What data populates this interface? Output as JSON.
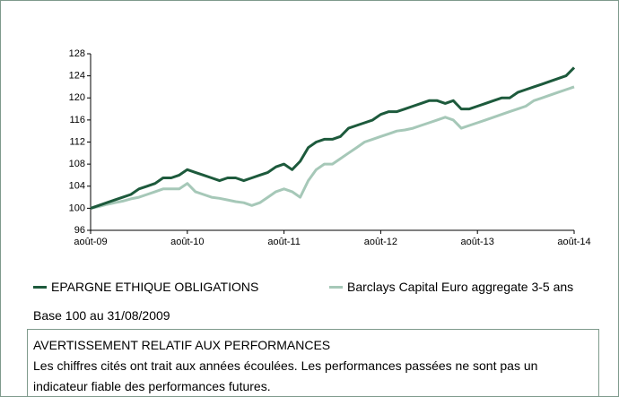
{
  "chart_data": {
    "type": "line",
    "x": [
      "2009-08",
      "2009-09",
      "2009-10",
      "2009-11",
      "2009-12",
      "2010-01",
      "2010-02",
      "2010-03",
      "2010-04",
      "2010-05",
      "2010-06",
      "2010-07",
      "2010-08",
      "2010-09",
      "2010-10",
      "2010-11",
      "2010-12",
      "2011-01",
      "2011-02",
      "2011-03",
      "2011-04",
      "2011-05",
      "2011-06",
      "2011-07",
      "2011-08",
      "2011-09",
      "2011-10",
      "2011-11",
      "2011-12",
      "2012-01",
      "2012-02",
      "2012-03",
      "2012-04",
      "2012-05",
      "2012-06",
      "2012-07",
      "2012-08",
      "2012-09",
      "2012-10",
      "2012-11",
      "2012-12",
      "2013-01",
      "2013-02",
      "2013-03",
      "2013-04",
      "2013-05",
      "2013-06",
      "2013-07",
      "2013-08",
      "2013-09",
      "2013-10",
      "2013-11",
      "2013-12",
      "2014-01",
      "2014-02",
      "2014-03",
      "2014-04",
      "2014-05",
      "2014-06",
      "2014-07",
      "2014-08"
    ],
    "series": [
      {
        "name": "EPARGNE ETHIQUE OBLIGATIONS",
        "color": "#1d5a3c",
        "values": [
          100,
          100.5,
          101,
          101.5,
          102,
          102.5,
          103.5,
          104,
          104.5,
          105.5,
          105.5,
          106,
          107,
          106.5,
          106,
          105.5,
          105,
          105.5,
          105.5,
          105,
          105.5,
          106,
          106.5,
          107.5,
          108,
          107,
          108.5,
          111,
          112,
          112.5,
          112.5,
          113,
          114.5,
          115,
          115.5,
          116,
          117,
          117.5,
          117.5,
          118,
          118.5,
          119,
          119.5,
          119.5,
          119,
          119.5,
          118,
          118,
          118.5,
          119,
          119.5,
          120,
          120,
          121,
          121.5,
          122,
          122.5,
          123,
          123.5,
          124,
          125.5
        ]
      },
      {
        "name": "Barclays Capital Euro aggregate 3-5 ans",
        "color": "#a6c8b8",
        "values": [
          100,
          100.3,
          100.7,
          101,
          101.3,
          101.7,
          102,
          102.5,
          103,
          103.5,
          103.5,
          103.5,
          104.5,
          103,
          102.5,
          102,
          101.8,
          101.5,
          101.2,
          101,
          100.5,
          101,
          102,
          103,
          103.5,
          103,
          102,
          105,
          107,
          108,
          108,
          109,
          110,
          111,
          112,
          112.5,
          113,
          113.5,
          114,
          114.2,
          114.5,
          115,
          115.5,
          116,
          116.5,
          116,
          114.5,
          115,
          115.5,
          116,
          116.5,
          117,
          117.5,
          118,
          118.5,
          119.5,
          120,
          120.5,
          121,
          121.5,
          122
        ]
      }
    ],
    "xticks": [
      {
        "value": "2009-08",
        "label": "août-09"
      },
      {
        "value": "2010-08",
        "label": "août-10"
      },
      {
        "value": "2011-08",
        "label": "août-11"
      },
      {
        "value": "2012-08",
        "label": "août-12"
      },
      {
        "value": "2013-08",
        "label": "août-13"
      },
      {
        "value": "2014-08",
        "label": "août-14"
      }
    ],
    "ylim": [
      96,
      128
    ],
    "yticks": [
      96,
      100,
      104,
      108,
      112,
      116,
      120,
      124,
      128
    ],
    "note": "Base 100 au 31/08/2009"
  },
  "warning": {
    "title": "AVERTISSEMENT RELATIF AUX PERFORMANCES",
    "text": "Les chiffres cités ont trait aux années écoulées. Les performances passées ne sont pas un indicateur fiable des performances futures."
  }
}
